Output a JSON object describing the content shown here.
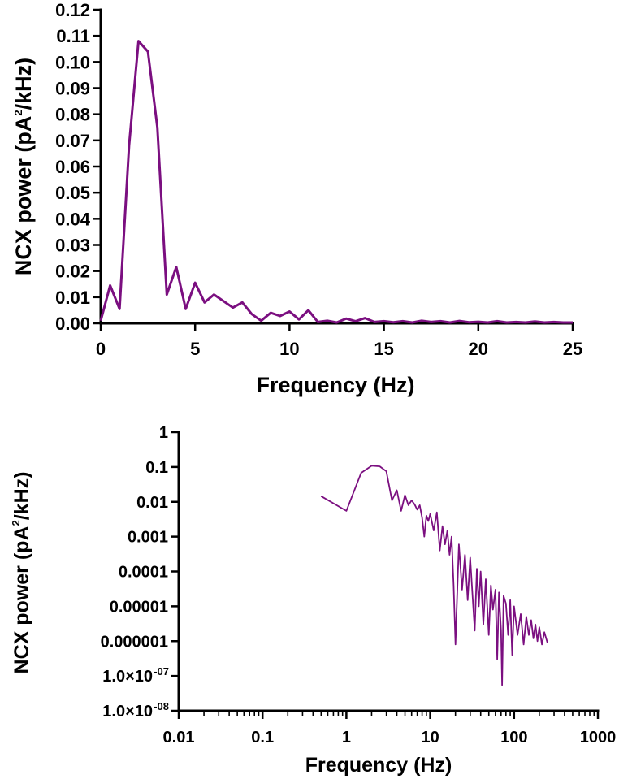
{
  "chart_data": [
    {
      "type": "line",
      "xlabel": "Frequency (Hz)",
      "ylabel": "NCX power (pA²/kHz)",
      "xlim": [
        0,
        25
      ],
      "ylim": [
        0,
        0.12
      ],
      "xticks": [
        "0",
        "5",
        "10",
        "15",
        "20",
        "25"
      ],
      "yticks": [
        "0.00",
        "0.01",
        "0.02",
        "0.03",
        "0.04",
        "0.05",
        "0.06",
        "0.07",
        "0.08",
        "0.09",
        "0.10",
        "0.11",
        "0.12"
      ],
      "series": [
        {
          "color": "#7b0f80",
          "x": [
            0,
            0.5,
            1,
            1.5,
            2,
            2.5,
            3,
            3.5,
            4,
            4.5,
            5,
            5.5,
            6,
            6.5,
            7,
            7.5,
            8,
            8.5,
            9,
            9.5,
            10,
            10.5,
            11,
            11.5,
            12,
            12.5,
            13,
            13.5,
            14,
            14.5,
            15,
            15.5,
            16,
            16.5,
            17,
            17.5,
            18,
            18.5,
            19,
            19.5,
            20,
            20.5,
            21,
            21.5,
            22,
            22.5,
            23,
            23.5,
            24,
            24.5,
            25
          ],
          "y": [
            0.001,
            0.0145,
            0.0055,
            0.068,
            0.108,
            0.104,
            0.075,
            0.011,
            0.0215,
            0.0055,
            0.0155,
            0.008,
            0.011,
            0.0085,
            0.006,
            0.008,
            0.0035,
            0.001,
            0.004,
            0.0028,
            0.0045,
            0.0015,
            0.005,
            0.0005,
            0.001,
            0.0003,
            0.0018,
            0.0008,
            0.002,
            0.0005,
            0.0008,
            0.0004,
            0.0008,
            0.0003,
            0.001,
            0.0005,
            0.0008,
            0.0003,
            0.0009,
            0.0004,
            0.0006,
            0.0003,
            0.0008,
            0.0003,
            0.0005,
            0.0003,
            0.0007,
            0.0003,
            0.0005,
            0.0003,
            0.0003
          ]
        }
      ]
    },
    {
      "type": "line",
      "xlabel": "Frequency (Hz)",
      "ylabel": "NCX power (pA²/kHz)",
      "xscale": "log",
      "yscale": "log",
      "xlim": [
        0.01,
        1000
      ],
      "ylim": [
        1e-08,
        1
      ],
      "xticks": [
        "0.01",
        "0.1",
        "1",
        "10",
        "100",
        "1000"
      ],
      "yticks": [
        "1",
        "0.1",
        "0.01",
        "0.001",
        "0.0001",
        "0.00001",
        "0.000001",
        "1.0×10",
        "1.0×10"
      ],
      "ytick_exponents": [
        "",
        "",
        "",
        "",
        "",
        "",
        "",
        "-07",
        "-08"
      ],
      "series": [
        {
          "color": "#7b0f80",
          "x": [
            0.5,
            1,
            1.5,
            2,
            2.5,
            3,
            3.5,
            4,
            4.5,
            5,
            5.5,
            6,
            6.5,
            7,
            7.5,
            8,
            8.5,
            9,
            9.5,
            10,
            11,
            12,
            13,
            14,
            15,
            16,
            17,
            18,
            19,
            20,
            22,
            24,
            26,
            28,
            30,
            32,
            34,
            36,
            38,
            40,
            43,
            46,
            50,
            53,
            56,
            60,
            63,
            66,
            70,
            72,
            75,
            80,
            85,
            90,
            95,
            100,
            110,
            120,
            130,
            140,
            150,
            160,
            170,
            180,
            190,
            200,
            215,
            230,
            250
          ],
          "y": [
            0.0145,
            0.0055,
            0.068,
            0.108,
            0.104,
            0.075,
            0.011,
            0.0215,
            0.0055,
            0.0155,
            0.008,
            0.011,
            0.0085,
            0.006,
            0.008,
            0.0035,
            0.001,
            0.004,
            0.0028,
            0.0045,
            0.0015,
            0.005,
            0.0004,
            0.002,
            0.0006,
            0.0015,
            0.0003,
            0.001,
            4e-05,
            8e-07,
            0.0006,
            3e-05,
            0.0003,
            1.5e-05,
            0.00025,
            2e-05,
            2e-06,
            0.00012,
            1e-05,
            0.0001,
            3e-06,
            6e-05,
            1.5e-06,
            4e-05,
            8e-06,
            3e-05,
            3e-07,
            2.5e-05,
            2e-06,
            5.5e-08,
            2e-05,
            1.2e-05,
            1.5e-06,
            1.5e-05,
            4e-07,
            1e-05,
            1.5e-06,
            6e-06,
            8e-07,
            5e-06,
            1.5e-06,
            4e-06,
            1.2e-06,
            3e-06,
            1e-06,
            2.5e-06,
            8e-07,
            1.8e-06,
            9e-07
          ]
        }
      ]
    }
  ]
}
